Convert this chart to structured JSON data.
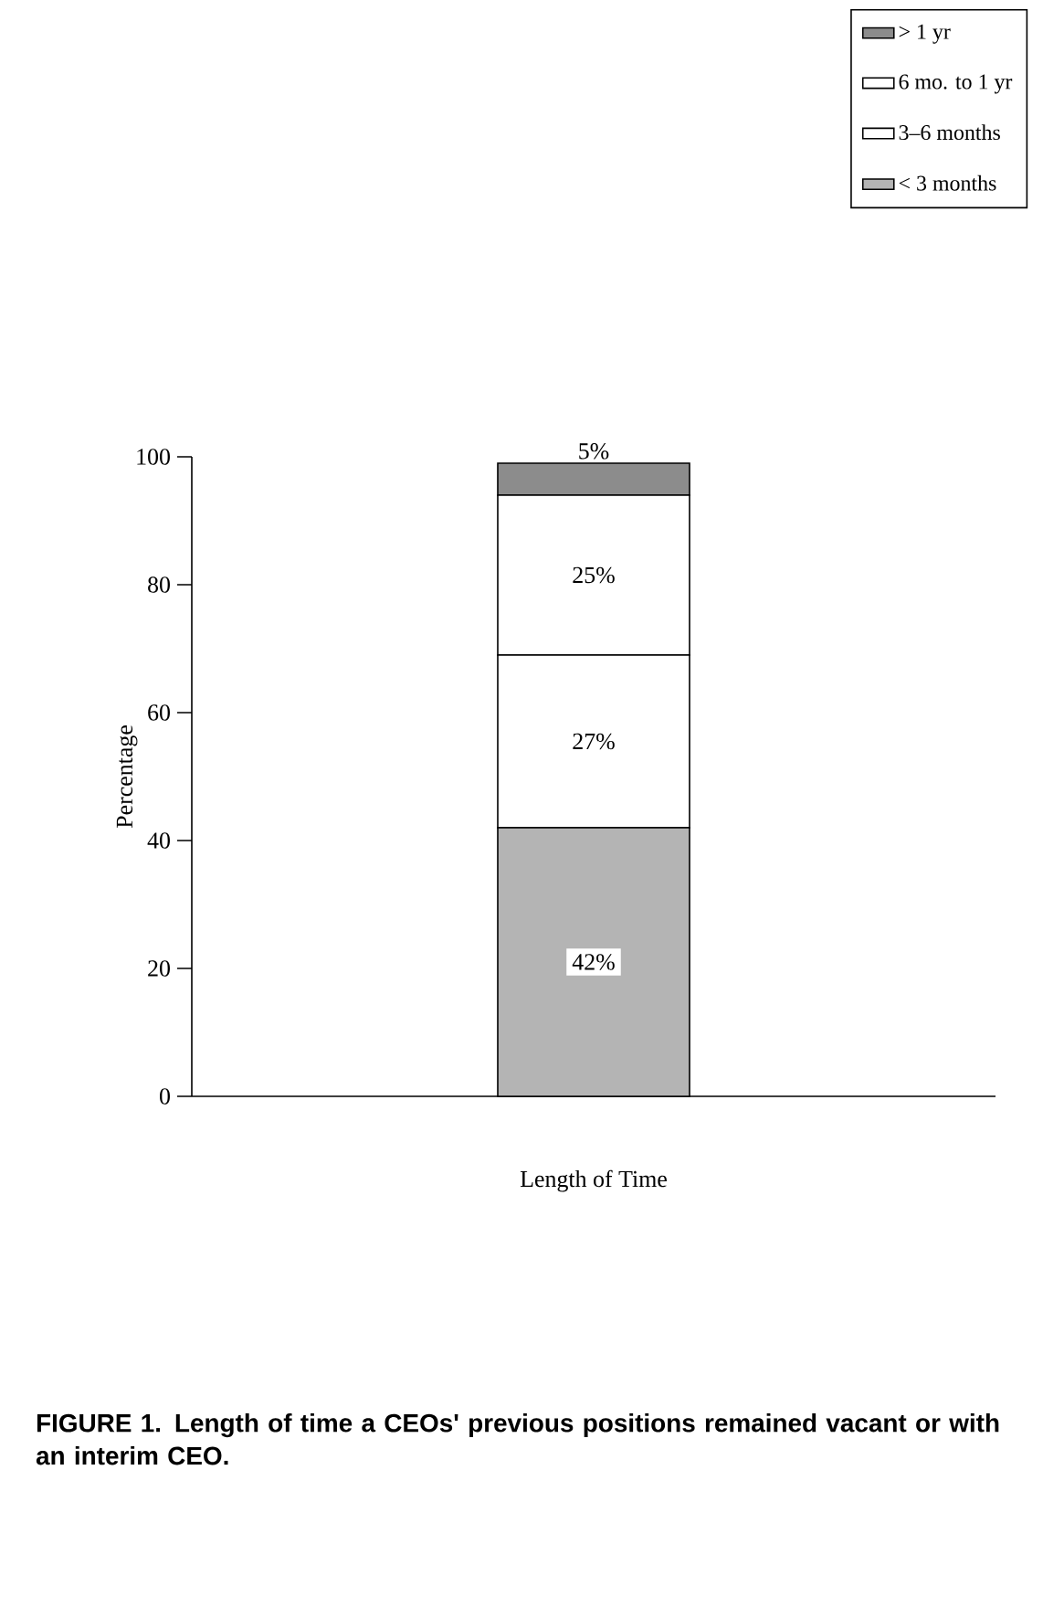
{
  "chart_data": {
    "type": "bar",
    "stacked": true,
    "title": "FIGURE 1. Length of time a CEOs' previous positions remained vacant or with an interim CEO.",
    "xlabel": "Length of Time",
    "ylabel": "Percentage",
    "categories": [
      null
    ],
    "series": [
      {
        "name": "< 3 months",
        "color": "#b4b4b4",
        "values": [
          42
        ],
        "value_labels": [
          "42%"
        ]
      },
      {
        "name": "3–6 months",
        "color": "#ffffff",
        "values": [
          27
        ],
        "value_labels": [
          "27%"
        ]
      },
      {
        "name": "6 mo. to 1 yr",
        "color": "#ffffff",
        "values": [
          25
        ],
        "value_labels": [
          "25%"
        ]
      },
      {
        "name": "> 1 yr",
        "color": "#8c8c8c",
        "values": [
          5
        ],
        "value_labels": [
          "5%"
        ]
      }
    ],
    "ylim": [
      0,
      100
    ],
    "yticks": [
      0,
      20,
      40,
      60,
      80,
      100
    ],
    "legend": "top right",
    "grid": false
  }
}
